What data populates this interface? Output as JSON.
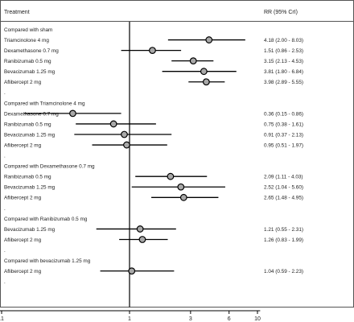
{
  "header": {
    "treatment": "Treatment",
    "estimate": "RR (95% CrI)"
  },
  "chart_data": {
    "type": "forest",
    "x_scale": "log",
    "xlim": [
      0.08,
      10.5
    ],
    "x_ticks": [
      {
        "value": 0.1,
        "label": ".1"
      },
      {
        "value": 1,
        "label": "1"
      },
      {
        "value": 3,
        "label": "3"
      },
      {
        "value": 6,
        "label": "6"
      },
      {
        "value": 10,
        "label": "10"
      }
    ],
    "reference_line": 1,
    "rows": [
      {
        "kind": "group",
        "label": "Compared with sham"
      },
      {
        "kind": "study",
        "label": "Triamcinolone 4 mg",
        "rr": 4.18,
        "lo": 2.0,
        "hi": 8.03,
        "ci_text": "4.18 (2.00 - 8.03)"
      },
      {
        "kind": "study",
        "label": "Dexamethasone 0.7 mg",
        "rr": 1.51,
        "lo": 0.86,
        "hi": 2.53,
        "ci_text": "1.51 (0.86 - 2.53)"
      },
      {
        "kind": "study",
        "label": "Ranibizumab 0.5 mg",
        "rr": 3.15,
        "lo": 2.13,
        "hi": 4.53,
        "ci_text": "3.15 (2.13 - 4.53)"
      },
      {
        "kind": "study",
        "label": "Bevacizumab 1.25 mg",
        "rr": 3.81,
        "lo": 1.8,
        "hi": 6.84,
        "ci_text": "3.81 (1.80 - 6.84)"
      },
      {
        "kind": "study",
        "label": "Aflibercept 2 mg",
        "rr": 3.98,
        "lo": 2.89,
        "hi": 5.55,
        "ci_text": "3.98 (2.89 - 5.55)"
      },
      {
        "kind": "spacer",
        "label": "."
      },
      {
        "kind": "group",
        "label": "Compared with Triamcinolone 4 mg"
      },
      {
        "kind": "study",
        "label": "Dexamethasone 0.7 mg",
        "rr": 0.36,
        "lo": 0.15,
        "hi": 0.86,
        "ci_text": "0.36 (0.15 - 0.86)"
      },
      {
        "kind": "study",
        "label": "Ranibizumab 0.5 mg",
        "rr": 0.75,
        "lo": 0.38,
        "hi": 1.61,
        "ci_text": "0.75 (0.38 - 1.61)"
      },
      {
        "kind": "study",
        "label": "Bevacizumab 1.25 mg",
        "rr": 0.91,
        "lo": 0.37,
        "hi": 2.13,
        "ci_text": "0.91 (0.37 - 2.13)"
      },
      {
        "kind": "study",
        "label": "Aflibercept 2 mg",
        "rr": 0.95,
        "lo": 0.51,
        "hi": 1.97,
        "ci_text": "0.95 (0.51 - 1.97)"
      },
      {
        "kind": "spacer",
        "label": "."
      },
      {
        "kind": "group",
        "label": "Compared with Dexamethasone 0.7 mg"
      },
      {
        "kind": "study",
        "label": "Ranibizumab 0.5 mg",
        "rr": 2.09,
        "lo": 1.11,
        "hi": 4.03,
        "ci_text": "2.09 (1.11 - 4.03)"
      },
      {
        "kind": "study",
        "label": "Bevacizumab 1.25 mg",
        "rr": 2.52,
        "lo": 1.04,
        "hi": 5.6,
        "ci_text": "2.52 (1.04 - 5.60)"
      },
      {
        "kind": "study",
        "label": "Aflibercept 2 mg",
        "rr": 2.65,
        "lo": 1.48,
        "hi": 4.95,
        "ci_text": "2.65 (1.48 - 4.95)"
      },
      {
        "kind": "spacer",
        "label": "."
      },
      {
        "kind": "group",
        "label": "Compared with Ranibizumab 0.5 mg"
      },
      {
        "kind": "study",
        "label": "Bevacizumab 1.25 mg",
        "rr": 1.21,
        "lo": 0.55,
        "hi": 2.31,
        "ci_text": "1.21 (0.55 - 2.31)"
      },
      {
        "kind": "study",
        "label": "Aflibercept 2 mg",
        "rr": 1.26,
        "lo": 0.83,
        "hi": 1.99,
        "ci_text": "1.26 (0.83 - 1.99)"
      },
      {
        "kind": "spacer",
        "label": "."
      },
      {
        "kind": "group",
        "label": "Compared with bevacizumab 1.25 mg"
      },
      {
        "kind": "study",
        "label": "Aflibercept 2 mg",
        "rr": 1.04,
        "lo": 0.59,
        "hi": 2.23,
        "ci_text": "1.04 (0.59 - 2.23)"
      },
      {
        "kind": "spacer",
        "label": "."
      }
    ],
    "colors": {
      "marker_fill": "#a8a8a8",
      "line": "#000000",
      "frame": "#555555"
    }
  }
}
